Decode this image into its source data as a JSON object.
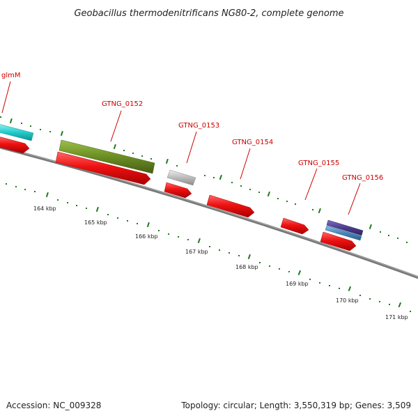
{
  "title": "Geobacillus thermodenitrificans NG80-2, complete genome",
  "footer": {
    "accession": "Accession: NC_009328",
    "summary": "Topology: circular; Length: 3,550,319 bp; Genes: 3,509"
  },
  "gene_labels": [
    "glmM",
    "GTNG_0152",
    "GTNG_0153",
    "GTNG_0154",
    "GTNG_0155",
    "GTNG_0156"
  ],
  "kbp_labels": [
    "164 kbp",
    "165 kbp",
    "166 kbp",
    "167 kbp",
    "168 kbp",
    "169 kbp",
    "170 kbp",
    "171 kbp"
  ],
  "colors": {
    "backbone": "#777777",
    "cds_red": "#ee1111",
    "cyan_feature": "#22cccc",
    "olive_feature": "#6b8e23",
    "grey_feature": "#bbbbbb",
    "purple_feature": "#4b3c8f",
    "blue_feature": "#4a86b8",
    "tick_green": "#1e7a1e",
    "label_red": "#cc0000"
  }
}
